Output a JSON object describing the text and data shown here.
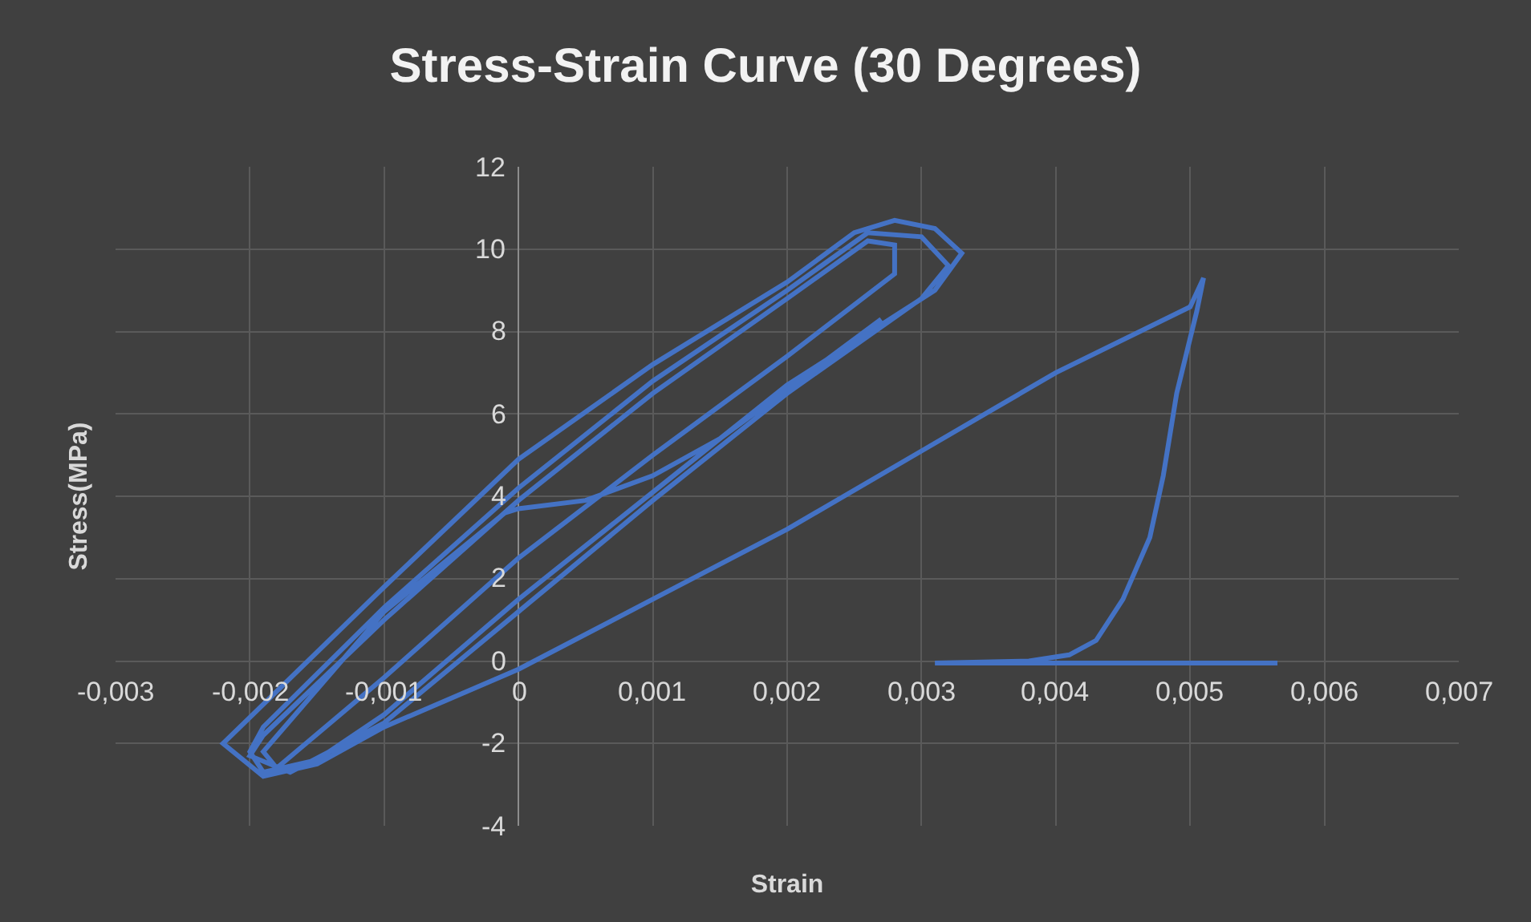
{
  "chart_data": {
    "type": "line",
    "title": "Stress-Strain Curve (30 Degrees)",
    "xlabel": "Strain",
    "ylabel": "Stress(MPa)",
    "xlim": [
      -0.003,
      0.007
    ],
    "xticks": [
      {
        "value": -0.003,
        "label": "-0,003"
      },
      {
        "value": -0.002,
        "label": "-0,002"
      },
      {
        "value": -0.001,
        "label": "-0,001"
      },
      0,
      {
        "value": 0.001,
        "label": "0,001"
      },
      {
        "value": 0.002,
        "label": "0,002"
      },
      {
        "value": 0.003,
        "label": "0,003"
      },
      {
        "value": 0.004,
        "label": "0,004"
      },
      {
        "value": 0.005,
        "label": "0,005"
      },
      {
        "value": 0.006,
        "label": "0,006"
      },
      {
        "value": 0.007,
        "label": "0,007"
      }
    ],
    "ylim": [
      -4,
      12
    ],
    "yticks": [
      -4,
      -2,
      0,
      2,
      4,
      6,
      8,
      10,
      12
    ],
    "grid": true,
    "marker": "none",
    "line_style": "solid",
    "series": [
      {
        "color": "#4472c4",
        "x": [
          0.00565,
          0.0031,
          0.0038,
          0.0041,
          0.0043,
          0.0045,
          0.0047,
          0.0048,
          0.0049,
          0.00505,
          0.0051,
          0.005,
          0.004,
          0.003,
          0.002,
          0.001,
          0,
          -0.001,
          -0.0015,
          -0.0019,
          -0.0022,
          -0.001,
          0,
          0.001,
          0.002,
          0.0025,
          0.0028,
          0.0031,
          0.0033,
          0.0031,
          0.002,
          0.001,
          0,
          -0.001,
          -0.0015,
          -0.0019,
          -0.002,
          -0.0019,
          -0.001,
          0,
          0.001,
          0.002,
          0.0026,
          0.003,
          0.0032,
          0.003,
          0.002,
          0.001,
          0,
          -0.001,
          -0.0017,
          -0.002,
          -0.0019,
          -0.001,
          0,
          0.001,
          0.002,
          0.0026,
          0.0028,
          0.0028,
          0.002,
          0.001,
          0,
          -0.001,
          -0.0018,
          -0.0019,
          -0.001,
          -0.0001,
          0,
          0.0005,
          0.001,
          0.0015,
          0.002,
          0.0027
        ],
        "values": [
          -0.05,
          -0.05,
          0,
          0.15,
          0.5,
          1.5,
          3,
          4.5,
          6.5,
          8.5,
          9.3,
          8.6,
          7,
          5.1,
          3.2,
          1.5,
          -0.2,
          -1.6,
          -2.5,
          -2.8,
          -2,
          1.8,
          4.9,
          7.2,
          9.2,
          10.4,
          10.7,
          10.5,
          9.9,
          9,
          6.7,
          4.1,
          1.5,
          -1.3,
          -2.4,
          -2.7,
          -2.2,
          -1.6,
          1.3,
          4.2,
          6.8,
          9,
          10.4,
          10.3,
          9.6,
          8.8,
          6.5,
          3.9,
          1.2,
          -1.5,
          -2.7,
          -2.3,
          -1.8,
          1,
          3.9,
          6.5,
          8.8,
          10.2,
          10.1,
          9.4,
          7.4,
          5,
          2.5,
          -0.4,
          -2.6,
          -2.2,
          1.2,
          3.6,
          3.7,
          3.9,
          4.5,
          5.4,
          6.6,
          8.3
        ]
      }
    ]
  }
}
